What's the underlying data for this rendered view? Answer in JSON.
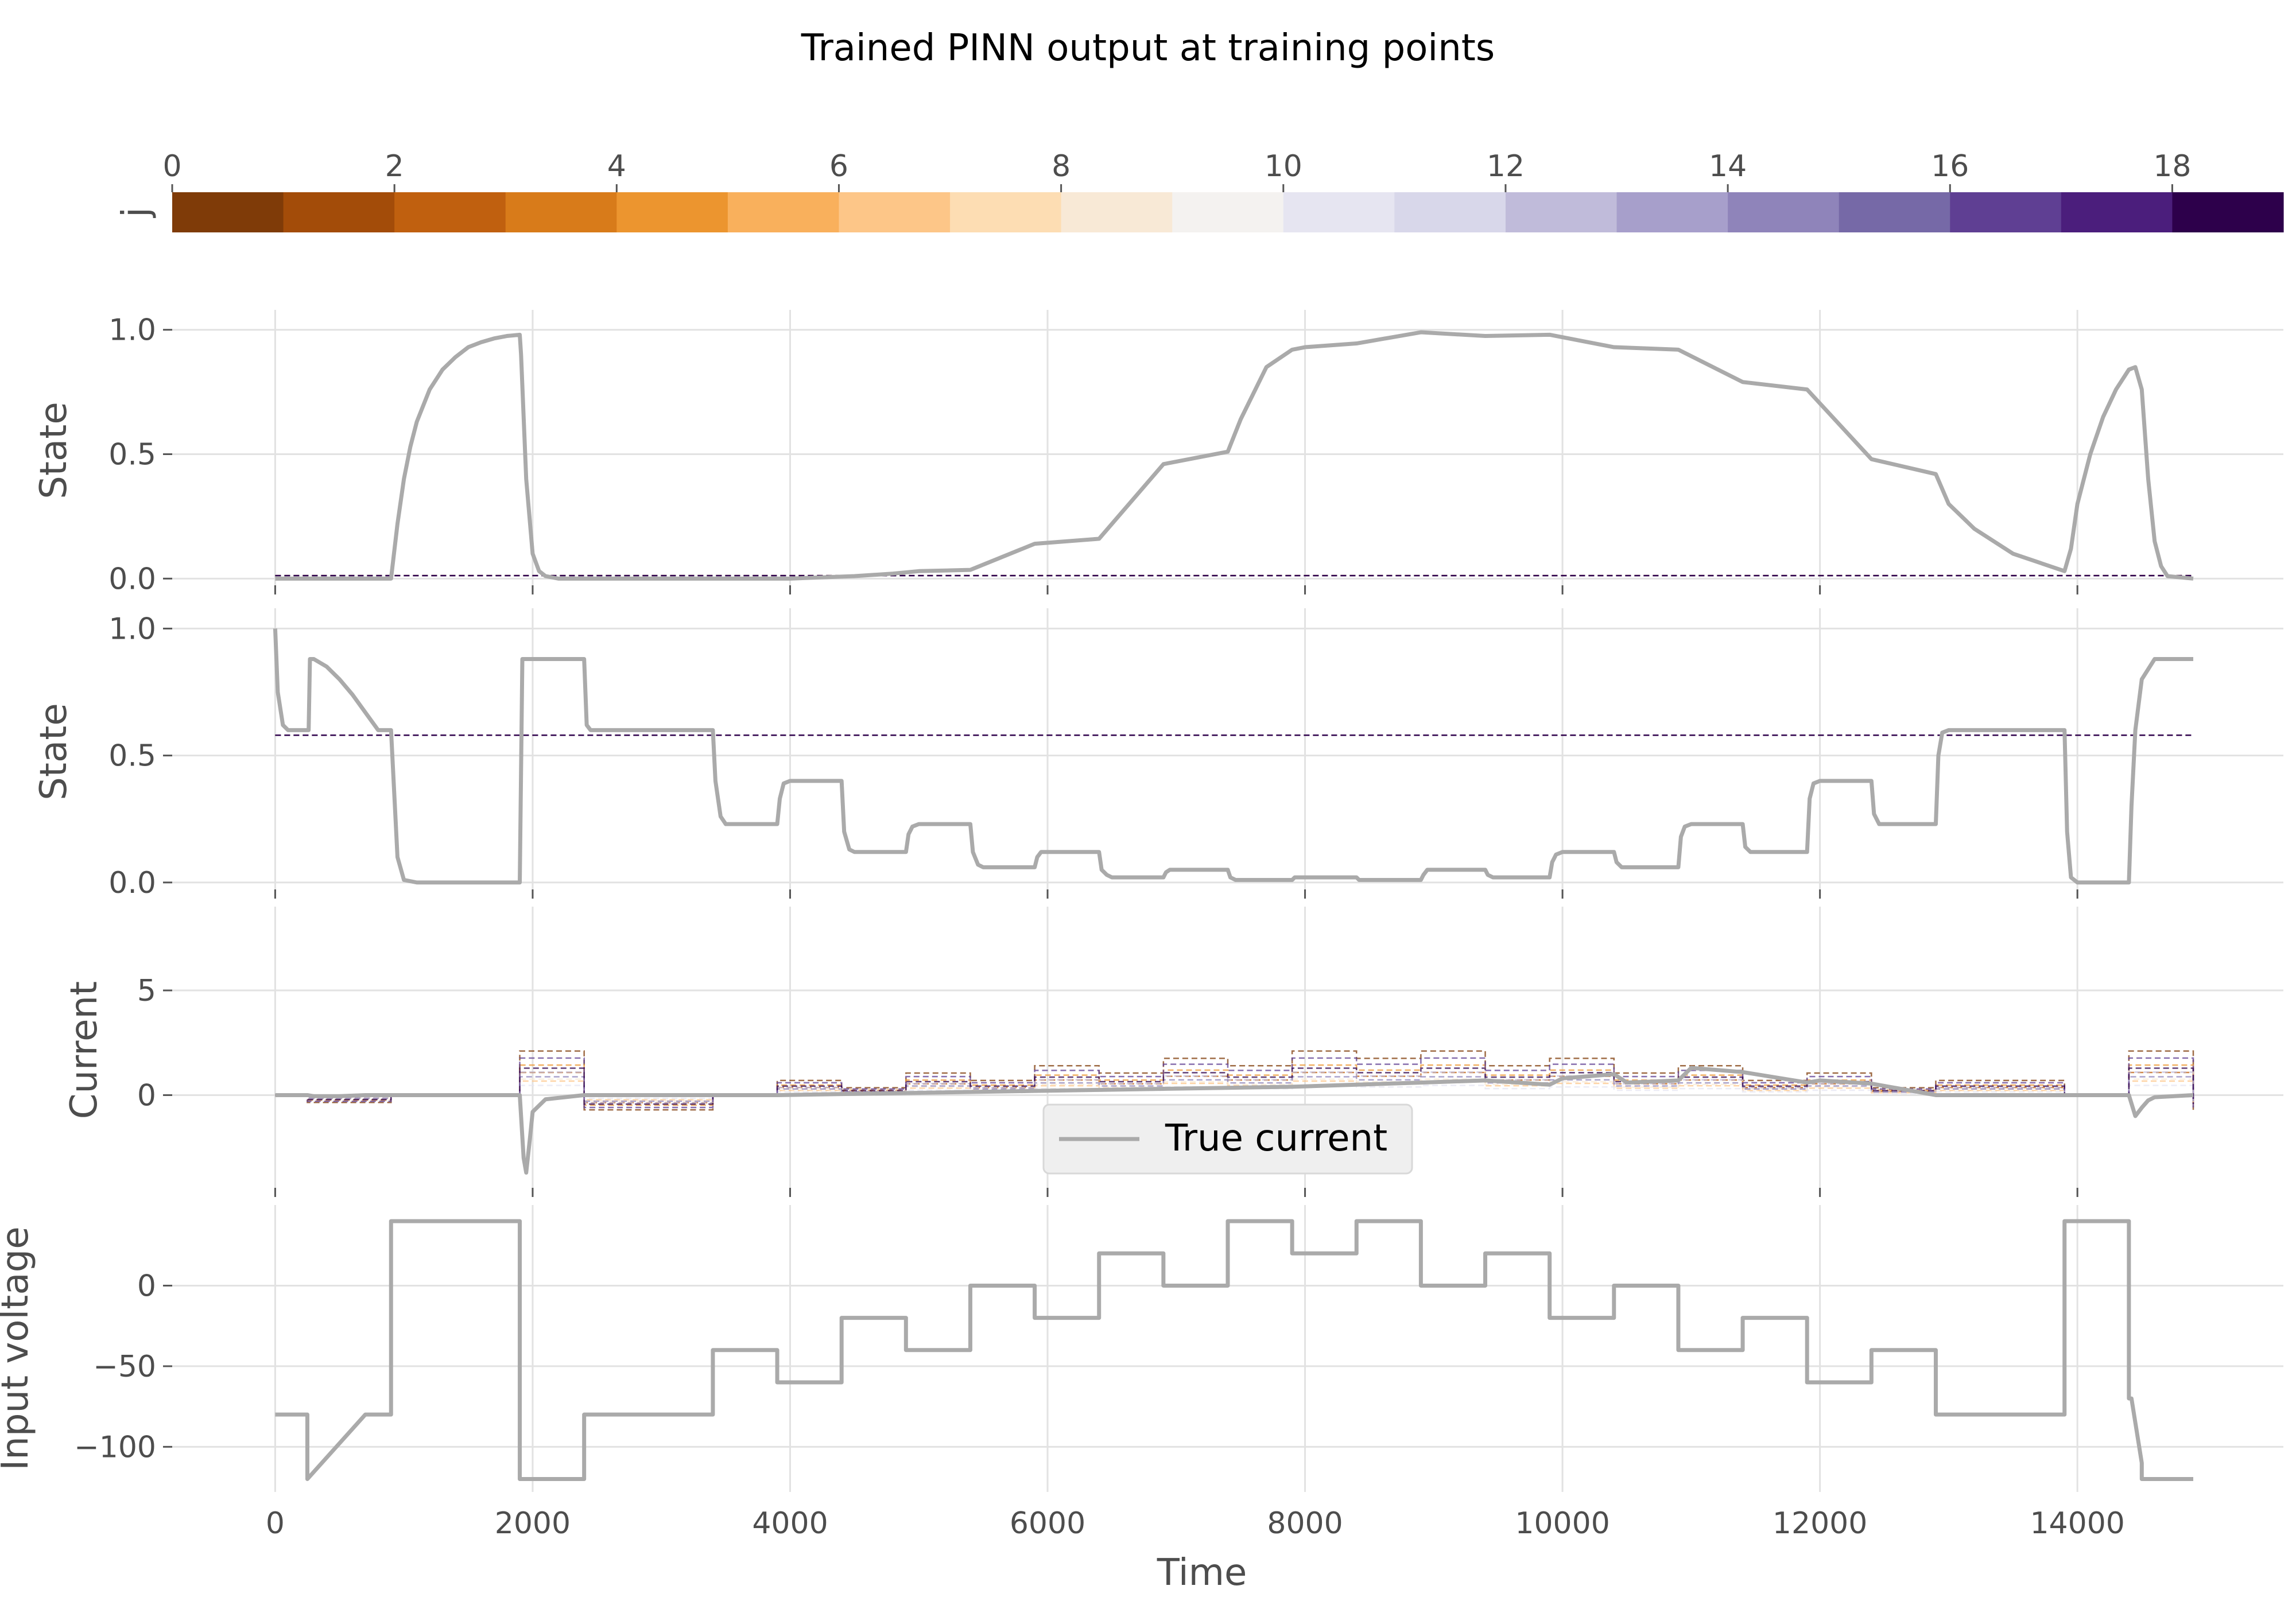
{
  "title": "Trained PINN output at training points",
  "colorbar": {
    "label": "j",
    "ticks": [
      0,
      2,
      4,
      6,
      8,
      10,
      12,
      14,
      16,
      18
    ],
    "range": [
      0,
      19
    ],
    "colors": [
      "#7f3b08",
      "#a34c09",
      "#c0600f",
      "#d87b1a",
      "#ec952f",
      "#f9b05c",
      "#fdc688",
      "#fdddb3",
      "#f8e9d6",
      "#f4f2f0",
      "#e6e5f1",
      "#d8d7ea",
      "#c0bbda",
      "#a79fcb",
      "#8f84ba",
      "#7669a7",
      "#5f3f93",
      "#4b1e7c",
      "#2d004b"
    ]
  },
  "legend": {
    "label": "True current"
  },
  "chart_data": [
    {
      "type": "line",
      "ylabel": "State",
      "ylim": [
        -0.05,
        1.08
      ],
      "yticks": [
        "0.0",
        "0.5",
        "1.0"
      ],
      "xlim": [
        -800,
        15600
      ],
      "true_series": {
        "x": [
          0,
          900,
          950,
          1000,
          1050,
          1100,
          1200,
          1300,
          1400,
          1500,
          1600,
          1700,
          1800,
          1900,
          1910,
          1950,
          2000,
          2050,
          2100,
          2200,
          4000,
          4500,
          4800,
          5000,
          5400,
          5900,
          6400,
          6900,
          7400,
          7500,
          7700,
          7900,
          8000,
          8400,
          8900,
          9400,
          9900,
          10400,
          10900,
          11400,
          11900,
          12400,
          12900,
          13000,
          13200,
          13500,
          13900,
          13950,
          14000,
          14100,
          14200,
          14300,
          14400,
          14450,
          14500,
          14550,
          14600,
          14650,
          14700,
          14900
        ],
        "y": [
          0,
          0,
          0.22,
          0.4,
          0.53,
          0.63,
          0.76,
          0.84,
          0.89,
          0.93,
          0.95,
          0.965,
          0.975,
          0.98,
          0.9,
          0.4,
          0.1,
          0.03,
          0.01,
          0,
          0,
          0.01,
          0.02,
          0.03,
          0.035,
          0.14,
          0.16,
          0.46,
          0.51,
          0.64,
          0.85,
          0.92,
          0.93,
          0.945,
          0.99,
          0.975,
          0.98,
          0.93,
          0.92,
          0.79,
          0.76,
          0.48,
          0.42,
          0.3,
          0.2,
          0.1,
          0.03,
          0.12,
          0.3,
          0.5,
          0.65,
          0.76,
          0.84,
          0.85,
          0.76,
          0.4,
          0.15,
          0.05,
          0.01,
          0
        ]
      },
      "pred_level": 0.012
    },
    {
      "type": "line",
      "ylabel": "State",
      "ylim": [
        -0.05,
        1.08
      ],
      "yticks": [
        "0.0",
        "0.5",
        "1.0"
      ],
      "xlim": [
        -800,
        15600
      ],
      "true_series": {
        "x": [
          0,
          20,
          60,
          100,
          150,
          200,
          260,
          270,
          300,
          400,
          500,
          600,
          700,
          800,
          900,
          920,
          950,
          1000,
          1100,
          1300,
          1700,
          1900,
          1920,
          1950,
          2000,
          2400,
          2420,
          2450,
          2500,
          3300,
          3400,
          3420,
          3460,
          3500,
          3900,
          3920,
          3950,
          4000,
          4400,
          4420,
          4460,
          4500,
          4900,
          4920,
          4950,
          5000,
          5400,
          5420,
          5460,
          5500,
          5900,
          5920,
          5950,
          6000,
          6400,
          6420,
          6460,
          6500,
          6900,
          6920,
          6950,
          7000,
          7400,
          7420,
          7460,
          7500,
          7900,
          7920,
          7950,
          8000,
          8400,
          8420,
          8460,
          8500,
          8900,
          8920,
          8950,
          9000,
          9400,
          9420,
          9460,
          9500,
          9900,
          9920,
          9950,
          10000,
          10400,
          10420,
          10460,
          10500,
          10900,
          10920,
          10950,
          11000,
          11400,
          11420,
          11460,
          11500,
          11900,
          11920,
          11950,
          12000,
          12400,
          12420,
          12460,
          12500,
          12900,
          12920,
          12950,
          13000,
          13900,
          13920,
          13950,
          14000,
          14100,
          14400,
          14420,
          14450,
          14500,
          14600,
          14900
        ],
        "y": [
          1.0,
          0.75,
          0.62,
          0.6,
          0.6,
          0.6,
          0.6,
          0.88,
          0.88,
          0.85,
          0.8,
          0.74,
          0.67,
          0.6,
          0.6,
          0.4,
          0.1,
          0.01,
          0,
          0,
          0,
          0,
          0.88,
          0.88,
          0.88,
          0.88,
          0.62,
          0.6,
          0.6,
          0.6,
          0.6,
          0.4,
          0.26,
          0.23,
          0.23,
          0.33,
          0.39,
          0.4,
          0.4,
          0.2,
          0.13,
          0.12,
          0.12,
          0.19,
          0.22,
          0.23,
          0.23,
          0.12,
          0.07,
          0.06,
          0.06,
          0.1,
          0.12,
          0.12,
          0.12,
          0.05,
          0.03,
          0.02,
          0.02,
          0.04,
          0.05,
          0.05,
          0.05,
          0.02,
          0.01,
          0.01,
          0.01,
          0.02,
          0.02,
          0.02,
          0.02,
          0.01,
          0.01,
          0.01,
          0.01,
          0.03,
          0.05,
          0.05,
          0.05,
          0.03,
          0.02,
          0.02,
          0.02,
          0.08,
          0.11,
          0.12,
          0.12,
          0.08,
          0.06,
          0.06,
          0.06,
          0.18,
          0.22,
          0.23,
          0.23,
          0.14,
          0.12,
          0.12,
          0.12,
          0.33,
          0.39,
          0.4,
          0.4,
          0.27,
          0.23,
          0.23,
          0.23,
          0.5,
          0.59,
          0.6,
          0.6,
          0.2,
          0.02,
          0,
          0,
          0,
          0.3,
          0.6,
          0.8,
          0.88,
          0.88
        ]
      },
      "pred_level": 0.58
    },
    {
      "type": "line",
      "ylabel": "Current",
      "ylim": [
        -4.7,
        9.0
      ],
      "yticks": [
        "0",
        "5"
      ],
      "xlim": [
        -800,
        15600
      ],
      "true_series": {
        "x": [
          0,
          250,
          300,
          500,
          700,
          900,
          1900,
          1910,
          1930,
          1950,
          1980,
          2000,
          2100,
          2400,
          3400,
          3900,
          4400,
          4900,
          5400,
          5900,
          6400,
          6900,
          7400,
          7900,
          8400,
          8900,
          9400,
          9900,
          10000,
          10400,
          10500,
          10900,
          11000,
          11400,
          11900,
          12000,
          12400,
          12900,
          13900,
          14400,
          14420,
          14450,
          14500,
          14550,
          14600,
          14900
        ],
        "y": [
          0,
          0,
          -0.05,
          -0.05,
          0,
          0,
          0,
          -1.0,
          -3.0,
          -3.7,
          -2.0,
          -0.8,
          -0.2,
          0,
          0,
          0,
          0.05,
          0.1,
          0.15,
          0.2,
          0.25,
          0.3,
          0.35,
          0.4,
          0.5,
          0.6,
          0.7,
          0.5,
          0.8,
          1.0,
          0.6,
          0.7,
          1.3,
          1.1,
          0.6,
          0.7,
          0.55,
          0,
          0,
          0,
          -0.4,
          -1.0,
          -0.6,
          -0.25,
          -0.1,
          0
        ]
      },
      "segment_boundaries": [
        0,
        250,
        900,
        1900,
        2400,
        3400,
        3900,
        4400,
        4900,
        5400,
        5900,
        6400,
        6900,
        7400,
        7900,
        8400,
        8900,
        9400,
        9900,
        10400,
        10900,
        11400,
        11900,
        12400,
        12900,
        13900,
        14400,
        14900
      ],
      "segment_voltage": [
        -80,
        -100,
        -80,
        40,
        -120,
        -80,
        -40,
        -60,
        -20,
        -40,
        0,
        -20,
        20,
        0,
        40,
        20,
        40,
        0,
        20,
        -20,
        0,
        -40,
        -20,
        -60,
        -40,
        -80,
        40,
        -120
      ],
      "legend_position": "lower center"
    },
    {
      "type": "line",
      "ylabel": "Input voltage",
      "xlabel": "Time",
      "ylim": [
        -128,
        50
      ],
      "yticks": [
        "−100",
        "−50",
        "0"
      ],
      "xticks": [
        "0",
        "2000",
        "4000",
        "6000",
        "8000",
        "10000",
        "12000",
        "14000"
      ],
      "xlim": [
        -800,
        15600
      ],
      "true_series": {
        "x": [
          0,
          250,
          250,
          700,
          700,
          900,
          900,
          1900,
          1900,
          2400,
          2400,
          3400,
          3400,
          3900,
          3900,
          4400,
          4400,
          4900,
          4900,
          5400,
          5400,
          5900,
          5900,
          6400,
          6400,
          6900,
          6900,
          7400,
          7400,
          7900,
          7900,
          8400,
          8400,
          8900,
          8900,
          9400,
          9400,
          9900,
          9900,
          10400,
          10400,
          10900,
          10900,
          11400,
          11400,
          11900,
          11900,
          12400,
          12400,
          12900,
          12900,
          13900,
          13900,
          14400,
          14400,
          14420,
          14450,
          14500,
          14500,
          14900
        ],
        "y": [
          -80,
          -80,
          -120,
          -80,
          -80,
          -80,
          40,
          40,
          -120,
          -120,
          -80,
          -80,
          -40,
          -40,
          -60,
          -60,
          -20,
          -20,
          -40,
          -40,
          0,
          0,
          -20,
          -20,
          20,
          20,
          0,
          0,
          40,
          40,
          20,
          20,
          40,
          40,
          0,
          0,
          20,
          20,
          -20,
          -20,
          0,
          0,
          -40,
          -40,
          -20,
          -20,
          -60,
          -60,
          -40,
          -40,
          -80,
          -80,
          40,
          40,
          -70,
          -70,
          -85,
          -110,
          -120,
          -120
        ]
      }
    }
  ]
}
